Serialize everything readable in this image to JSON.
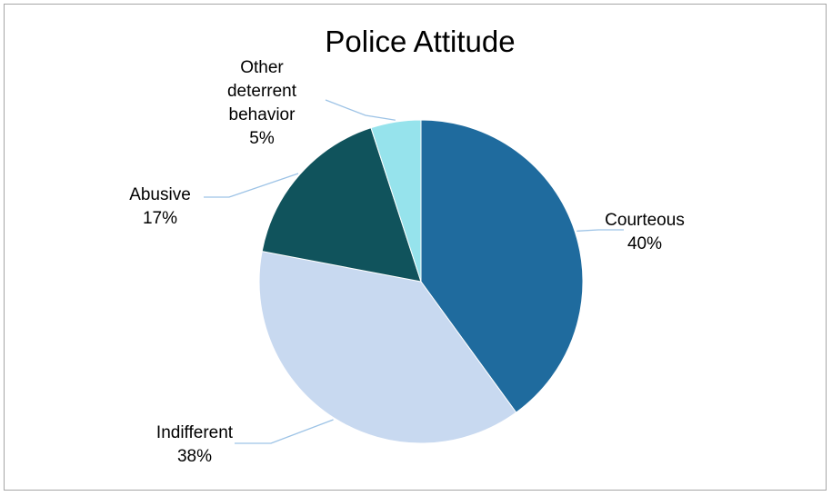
{
  "chart_data": {
    "type": "pie",
    "title": "Police Attitude",
    "slices": [
      {
        "label": "Courteous",
        "value": 40,
        "value_label": "40%",
        "color": "#1f6b9e"
      },
      {
        "label": "Indifferent",
        "value": 38,
        "value_label": "38%",
        "color": "#c8d9f0"
      },
      {
        "label": "Abusive",
        "value": 17,
        "value_label": "17%",
        "color": "#10535c"
      },
      {
        "label": "Other deterrent behavior",
        "value": 5,
        "value_label": "5%",
        "color": "#96e3ec"
      }
    ],
    "legend": "none",
    "data_labels": "outside with leader lines"
  }
}
